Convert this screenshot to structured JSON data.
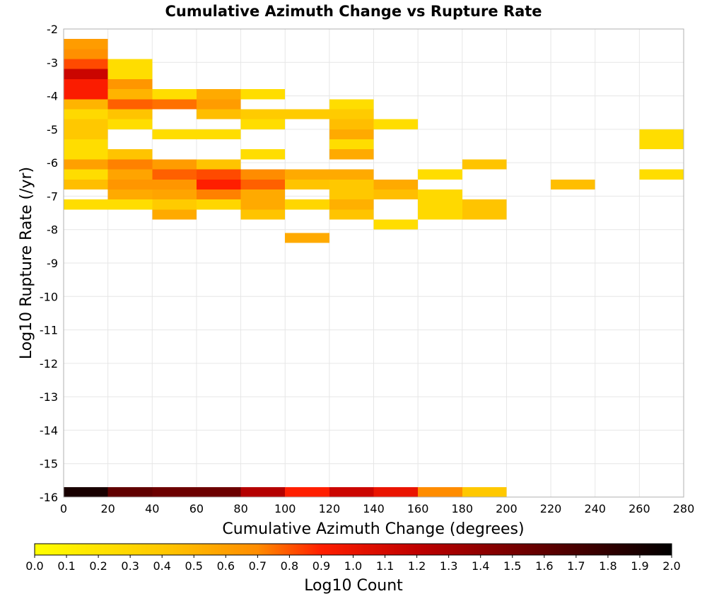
{
  "chart_data": {
    "type": "heatmap",
    "title": "Cumulative Azimuth Change vs Rupture Rate",
    "xlabel": "Cumulative Azimuth Change (degrees)",
    "ylabel": "Log10 Rupture Rate (/yr)",
    "xlim": [
      0,
      280
    ],
    "ylim": [
      -16,
      -2
    ],
    "x_ticks": [
      "0",
      "20",
      "40",
      "60",
      "80",
      "100",
      "120",
      "140",
      "160",
      "180",
      "200",
      "220",
      "240",
      "260",
      "280"
    ],
    "y_ticks": [
      "-2",
      "-3",
      "-4",
      "-5",
      "-6",
      "-7",
      "-8",
      "-9",
      "-10",
      "-11",
      "-12",
      "-13",
      "-14",
      "-15",
      "-16"
    ],
    "x_bin_width": 20,
    "y_bin_height": 0.3,
    "grid": true,
    "colorbar": {
      "label": "Log10 Count",
      "range": [
        0,
        2
      ],
      "ticks": [
        "0.0",
        "0.1",
        "0.2",
        "0.3",
        "0.4",
        "0.5",
        "0.6",
        "0.7",
        "0.8",
        "0.9",
        "1.0",
        "1.1",
        "1.2",
        "1.3",
        "1.4",
        "1.5",
        "1.6",
        "1.7",
        "1.8",
        "1.9",
        "2.0"
      ],
      "placement": "bottom"
    },
    "cells": [
      {
        "x": 0,
        "y": -2.45,
        "v": 0.62
      },
      {
        "x": 0,
        "y": -2.75,
        "v": 0.68
      },
      {
        "x": 0,
        "y": -3.05,
        "v": 0.82
      },
      {
        "x": 0,
        "y": -3.35,
        "v": 1.15
      },
      {
        "x": 0,
        "y": -3.65,
        "v": 0.92
      },
      {
        "x": 0,
        "y": -3.95,
        "v": 0.92
      },
      {
        "x": 0,
        "y": -4.25,
        "v": 0.5
      },
      {
        "x": 0,
        "y": -4.55,
        "v": 0.28
      },
      {
        "x": 0,
        "y": -4.85,
        "v": 0.4
      },
      {
        "x": 0,
        "y": -5.15,
        "v": 0.4
      },
      {
        "x": 0,
        "y": -5.45,
        "v": 0.25
      },
      {
        "x": 0,
        "y": -5.75,
        "v": 0.25
      },
      {
        "x": 0,
        "y": -6.05,
        "v": 0.6
      },
      {
        "x": 0,
        "y": -6.35,
        "v": 0.25
      },
      {
        "x": 0,
        "y": -6.65,
        "v": 0.45
      },
      {
        "x": 0,
        "y": -7.25,
        "v": 0.25
      },
      {
        "x": 20,
        "y": -3.05,
        "v": 0.25
      },
      {
        "x": 20,
        "y": -3.35,
        "v": 0.25
      },
      {
        "x": 20,
        "y": -3.65,
        "v": 0.65
      },
      {
        "x": 20,
        "y": -3.95,
        "v": 0.5
      },
      {
        "x": 20,
        "y": -4.25,
        "v": 0.78
      },
      {
        "x": 20,
        "y": -4.55,
        "v": 0.42
      },
      {
        "x": 20,
        "y": -4.85,
        "v": 0.25
      },
      {
        "x": 20,
        "y": -5.75,
        "v": 0.42
      },
      {
        "x": 20,
        "y": -6.05,
        "v": 0.72
      },
      {
        "x": 20,
        "y": -6.35,
        "v": 0.58
      },
      {
        "x": 20,
        "y": -6.65,
        "v": 0.65
      },
      {
        "x": 20,
        "y": -6.95,
        "v": 0.55
      },
      {
        "x": 20,
        "y": -7.25,
        "v": 0.25
      },
      {
        "x": 40,
        "y": -3.95,
        "v": 0.25
      },
      {
        "x": 40,
        "y": -4.25,
        "v": 0.75
      },
      {
        "x": 40,
        "y": -5.15,
        "v": 0.25
      },
      {
        "x": 40,
        "y": -6.05,
        "v": 0.62
      },
      {
        "x": 40,
        "y": -6.35,
        "v": 0.78
      },
      {
        "x": 40,
        "y": -6.65,
        "v": 0.65
      },
      {
        "x": 40,
        "y": -6.95,
        "v": 0.58
      },
      {
        "x": 40,
        "y": -7.25,
        "v": 0.38
      },
      {
        "x": 40,
        "y": -7.55,
        "v": 0.55
      },
      {
        "x": 60,
        "y": -3.95,
        "v": 0.55
      },
      {
        "x": 60,
        "y": -4.25,
        "v": 0.62
      },
      {
        "x": 60,
        "y": -4.55,
        "v": 0.45
      },
      {
        "x": 60,
        "y": -5.15,
        "v": 0.25
      },
      {
        "x": 60,
        "y": -6.05,
        "v": 0.42
      },
      {
        "x": 60,
        "y": -6.35,
        "v": 0.82
      },
      {
        "x": 60,
        "y": -6.65,
        "v": 0.9
      },
      {
        "x": 60,
        "y": -6.95,
        "v": 0.72
      },
      {
        "x": 60,
        "y": -7.25,
        "v": 0.3
      },
      {
        "x": 80,
        "y": -3.95,
        "v": 0.25
      },
      {
        "x": 80,
        "y": -4.55,
        "v": 0.38
      },
      {
        "x": 80,
        "y": -4.85,
        "v": 0.25
      },
      {
        "x": 80,
        "y": -5.75,
        "v": 0.25
      },
      {
        "x": 80,
        "y": -6.35,
        "v": 0.7
      },
      {
        "x": 80,
        "y": -6.65,
        "v": 0.78
      },
      {
        "x": 80,
        "y": -6.95,
        "v": 0.55
      },
      {
        "x": 80,
        "y": -7.25,
        "v": 0.55
      },
      {
        "x": 80,
        "y": -7.55,
        "v": 0.42
      },
      {
        "x": 100,
        "y": -4.55,
        "v": 0.38
      },
      {
        "x": 100,
        "y": -6.35,
        "v": 0.55
      },
      {
        "x": 100,
        "y": -6.65,
        "v": 0.42
      },
      {
        "x": 100,
        "y": -7.25,
        "v": 0.3
      },
      {
        "x": 100,
        "y": -8.25,
        "v": 0.55
      },
      {
        "x": 120,
        "y": -4.25,
        "v": 0.25
      },
      {
        "x": 120,
        "y": -4.55,
        "v": 0.38
      },
      {
        "x": 120,
        "y": -4.85,
        "v": 0.45
      },
      {
        "x": 120,
        "y": -5.15,
        "v": 0.55
      },
      {
        "x": 120,
        "y": -5.45,
        "v": 0.25
      },
      {
        "x": 120,
        "y": -5.75,
        "v": 0.55
      },
      {
        "x": 120,
        "y": -6.35,
        "v": 0.55
      },
      {
        "x": 120,
        "y": -6.65,
        "v": 0.4
      },
      {
        "x": 120,
        "y": -6.95,
        "v": 0.4
      },
      {
        "x": 120,
        "y": -7.25,
        "v": 0.52
      },
      {
        "x": 120,
        "y": -7.55,
        "v": 0.42
      },
      {
        "x": 140,
        "y": -4.85,
        "v": 0.25
      },
      {
        "x": 140,
        "y": -6.65,
        "v": 0.55
      },
      {
        "x": 140,
        "y": -6.95,
        "v": 0.45
      },
      {
        "x": 140,
        "y": -7.85,
        "v": 0.25
      },
      {
        "x": 160,
        "y": -6.35,
        "v": 0.25
      },
      {
        "x": 160,
        "y": -6.95,
        "v": 0.28
      },
      {
        "x": 160,
        "y": -7.25,
        "v": 0.28
      },
      {
        "x": 160,
        "y": -7.55,
        "v": 0.28
      },
      {
        "x": 180,
        "y": -6.05,
        "v": 0.42
      },
      {
        "x": 180,
        "y": -7.25,
        "v": 0.42
      },
      {
        "x": 180,
        "y": -7.55,
        "v": 0.42
      },
      {
        "x": 220,
        "y": -6.65,
        "v": 0.45
      },
      {
        "x": 260,
        "y": -5.15,
        "v": 0.25
      },
      {
        "x": 260,
        "y": -5.45,
        "v": 0.25
      },
      {
        "x": 260,
        "y": -6.35,
        "v": 0.25
      },
      {
        "x": 0,
        "y": -15.85,
        "v": 1.9
      },
      {
        "x": 20,
        "y": -15.85,
        "v": 1.6
      },
      {
        "x": 40,
        "y": -15.85,
        "v": 1.55
      },
      {
        "x": 60,
        "y": -15.85,
        "v": 1.55
      },
      {
        "x": 80,
        "y": -15.85,
        "v": 1.25
      },
      {
        "x": 100,
        "y": -15.85,
        "v": 0.9
      },
      {
        "x": 120,
        "y": -15.85,
        "v": 1.15
      },
      {
        "x": 140,
        "y": -15.85,
        "v": 1.0
      },
      {
        "x": 160,
        "y": -15.85,
        "v": 0.7
      },
      {
        "x": 180,
        "y": -15.85,
        "v": 0.4
      }
    ]
  }
}
